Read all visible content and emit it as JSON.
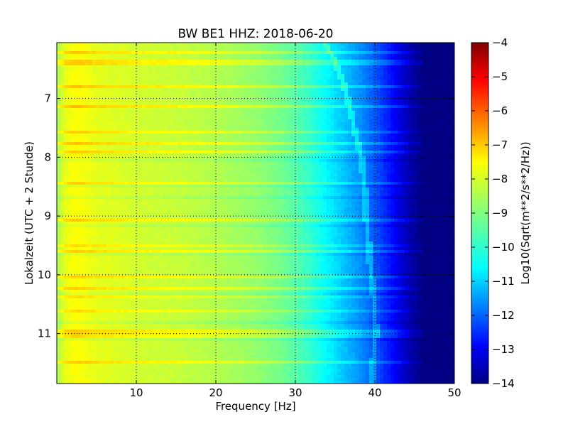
{
  "chart_data": {
    "type": "heatmap",
    "title": "BW BE1 HHZ: 2018-06-20",
    "xlabel": "Frequency [Hz]",
    "ylabel": "Lokalzeit (UTC + 2 Stunde)",
    "xlim": [
      0,
      50
    ],
    "ylim": [
      11.85,
      6.05
    ],
    "y_inverted": true,
    "x_ticks": [
      10,
      20,
      30,
      40,
      50
    ],
    "y_ticks": [
      7,
      8,
      9,
      10,
      11
    ],
    "grid": true,
    "colormap": "jet",
    "colorbar": {
      "label": "Log10(Sqrt(m**2/s**2/Hz))",
      "range": [
        -14,
        -4
      ],
      "ticks": [
        -4,
        -5,
        -6,
        -7,
        -8,
        -9,
        -10,
        -11,
        -12,
        -13,
        -14
      ]
    },
    "spectral_profile": {
      "frequencies_hz": [
        0,
        1,
        2,
        3,
        5,
        8,
        10,
        15,
        20,
        25,
        28,
        30,
        32,
        34,
        36,
        38,
        40,
        42,
        44,
        46,
        50
      ],
      "log10_amplitude": [
        -8.6,
        -8.0,
        -7.8,
        -7.8,
        -8.0,
        -8.1,
        -8.2,
        -8.3,
        -8.5,
        -8.8,
        -9.1,
        -9.4,
        -9.8,
        -10.3,
        -10.8,
        -11.3,
        -11.9,
        -12.6,
        -13.4,
        -14.0,
        -14.0
      ]
    },
    "drifting_line": {
      "description_hz_vs_time": [
        [
          6.05,
          33.5
        ],
        [
          6.3,
          34.8
        ],
        [
          6.8,
          36.2
        ],
        [
          7.5,
          37.4
        ],
        [
          8.0,
          38.3
        ],
        [
          8.6,
          38.8
        ],
        [
          9.2,
          39.0
        ],
        [
          9.8,
          39.4
        ],
        [
          10.4,
          39.9
        ],
        [
          11.0,
          40.1
        ],
        [
          11.85,
          39.6
        ]
      ]
    },
    "colors": {
      "jet_stops": [
        "#00007f",
        "#0000ff",
        "#007fff",
        "#00ffff",
        "#7fff7f",
        "#ffff00",
        "#ff7f00",
        "#ff0000",
        "#7f0000"
      ]
    }
  }
}
